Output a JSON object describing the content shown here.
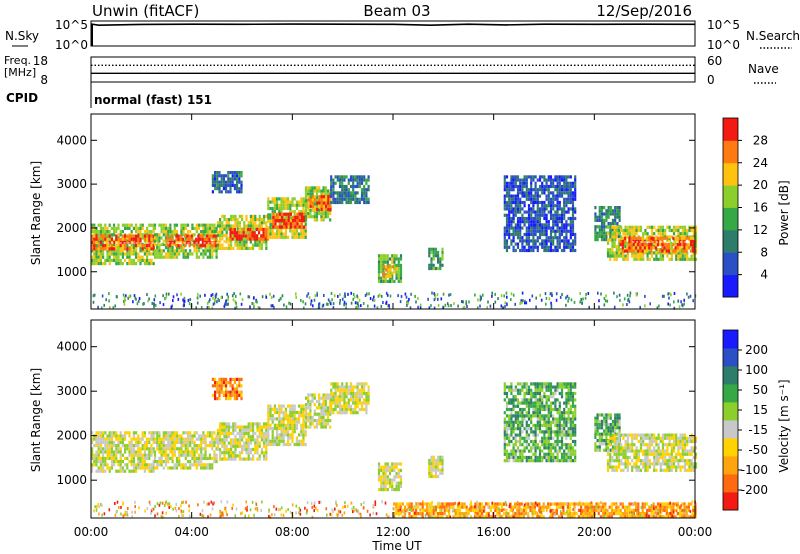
{
  "header": {
    "station": "Unwin (fitACF)",
    "beam": "Beam 03",
    "date": "12/Sep/2016"
  },
  "chart_data": [
    {
      "type": "line",
      "panel": "sky-noise",
      "ylabel_left": "N.Sky",
      "ylabel_right": "N.Search",
      "left_ticks": [
        "10^5",
        "10^0"
      ],
      "right_ticks": [
        "10^5",
        "10^0"
      ],
      "series": [
        {
          "name": "N.Sky",
          "style": "solid",
          "x_hours": [
            0,
            0.3,
            2,
            4,
            6,
            8,
            10,
            12,
            13.5,
            15,
            16.5,
            18,
            20,
            22,
            24
          ],
          "values": [
            100000,
            50000,
            80000,
            90000,
            85000,
            95000,
            90000,
            85000,
            50000,
            90000,
            60000,
            90000,
            85000,
            90000,
            85000
          ]
        }
      ]
    },
    {
      "type": "line",
      "panel": "frequency-nave",
      "ylabel_left": "Freq. [MHz]",
      "ylabel_right": "Nave",
      "left_ticks": [
        "18",
        "8"
      ],
      "right_ticks": [
        "60",
        "0"
      ],
      "ylim_left": [
        8,
        18
      ],
      "ylim_right": [
        0,
        60
      ],
      "series": [
        {
          "name": "Freq",
          "axis": "left",
          "style": "solid",
          "x_hours": [
            0,
            24
          ],
          "values": [
            11.5,
            11.5
          ]
        },
        {
          "name": "Nave",
          "axis": "right",
          "style": "dotted",
          "x_hours": [
            0,
            24
          ],
          "values": [
            40,
            40
          ]
        }
      ]
    },
    {
      "type": "table",
      "panel": "cpid",
      "label": "CPID",
      "program": "normal (fast) 151"
    },
    {
      "type": "heatmap",
      "panel": "power",
      "ylabel": "Slant Range [km]",
      "y_ticks": [
        "1000",
        "2000",
        "3000",
        "4000"
      ],
      "ylim": [
        150,
        4600
      ],
      "colorbar_label": "Power [dB]",
      "colorbar_ticks": [
        "4",
        "8",
        "12",
        "16",
        "20",
        "24",
        "28"
      ],
      "colorbar_range": [
        0,
        32
      ],
      "colors": [
        "#1a1aff",
        "#2b4fc4",
        "#2e7d6b",
        "#36a845",
        "#8ccf2c",
        "#ffc20e",
        "#ff7a10",
        "#f21a12"
      ],
      "regions": [
        {
          "t0": 0.0,
          "t1": 2.5,
          "r0": 1200,
          "r1": 2100,
          "level": 0.55
        },
        {
          "t0": 0.0,
          "t1": 2.5,
          "r0": 1550,
          "r1": 1850,
          "level": 0.85
        },
        {
          "t0": 2.5,
          "t1": 5.0,
          "r0": 1300,
          "r1": 2100,
          "level": 0.55
        },
        {
          "t0": 3.0,
          "t1": 5.0,
          "r0": 1600,
          "r1": 1850,
          "level": 0.9
        },
        {
          "t0": 5.0,
          "t1": 7.0,
          "r0": 1500,
          "r1": 2300,
          "level": 0.6
        },
        {
          "t0": 5.5,
          "t1": 7.0,
          "r0": 1750,
          "r1": 2000,
          "level": 0.9
        },
        {
          "t0": 7.0,
          "t1": 8.5,
          "r0": 1800,
          "r1": 2700,
          "level": 0.6
        },
        {
          "t0": 7.2,
          "t1": 8.5,
          "r0": 2000,
          "r1": 2350,
          "level": 0.92
        },
        {
          "t0": 8.5,
          "t1": 9.5,
          "r0": 2200,
          "r1": 2950,
          "level": 0.55
        },
        {
          "t0": 8.6,
          "t1": 9.5,
          "r0": 2450,
          "r1": 2750,
          "level": 0.85
        },
        {
          "t0": 9.5,
          "t1": 11.0,
          "r0": 2550,
          "r1": 3200,
          "level": 0.3
        },
        {
          "t0": 4.8,
          "t1": 6.0,
          "r0": 2800,
          "r1": 3300,
          "level": 0.25
        },
        {
          "t0": 11.4,
          "t1": 12.3,
          "r0": 800,
          "r1": 1400,
          "level": 0.5
        },
        {
          "t0": 11.6,
          "t1": 12.0,
          "r0": 900,
          "r1": 1150,
          "level": 0.75
        },
        {
          "t0": 13.4,
          "t1": 14.0,
          "r0": 1050,
          "r1": 1550,
          "level": 0.4
        },
        {
          "t0": 16.4,
          "t1": 19.2,
          "r0": 1450,
          "r1": 3200,
          "level": 0.2
        },
        {
          "t0": 20.0,
          "t1": 21.0,
          "r0": 1700,
          "r1": 2500,
          "level": 0.35
        },
        {
          "t0": 20.5,
          "t1": 24.0,
          "r0": 1250,
          "r1": 2050,
          "level": 0.6
        },
        {
          "t0": 21.0,
          "t1": 24.0,
          "r0": 1450,
          "r1": 1800,
          "level": 0.85
        }
      ]
    },
    {
      "type": "heatmap",
      "panel": "velocity",
      "ylabel": "Slant Range [km]",
      "y_ticks": [
        "1000",
        "2000",
        "3000",
        "4000"
      ],
      "ylim": [
        150,
        4600
      ],
      "colorbar_label": "Velocity [m s⁻¹]",
      "colorbar_ticks": [
        "-200",
        "-100",
        "-50",
        "-15",
        "15",
        "50",
        "100",
        "200"
      ],
      "colorbar_range": [
        -250,
        250
      ],
      "colors": [
        "#f21a12",
        "#ff6a10",
        "#ffa30e",
        "#ffd200",
        "#c8c8c8",
        "#8ccf2c",
        "#36a845",
        "#2e7d6b",
        "#2b4fc4",
        "#1a1aff"
      ],
      "regions": [
        {
          "t0": 0.0,
          "t1": 2.5,
          "r0": 1200,
          "r1": 2100,
          "level": 0.45
        },
        {
          "t0": 2.5,
          "t1": 5.0,
          "r0": 1300,
          "r1": 2100,
          "level": 0.45
        },
        {
          "t0": 5.0,
          "t1": 7.0,
          "r0": 1500,
          "r1": 2300,
          "level": 0.45
        },
        {
          "t0": 7.0,
          "t1": 8.5,
          "r0": 1800,
          "r1": 2700,
          "level": 0.45
        },
        {
          "t0": 8.5,
          "t1": 9.5,
          "r0": 2200,
          "r1": 2950,
          "level": 0.45
        },
        {
          "t0": 9.5,
          "t1": 11.0,
          "r0": 2550,
          "r1": 3200,
          "level": 0.45
        },
        {
          "t0": 4.8,
          "t1": 6.0,
          "r0": 2800,
          "r1": 3300,
          "level": 0.2
        },
        {
          "t0": 11.4,
          "t1": 12.3,
          "r0": 800,
          "r1": 1400,
          "level": 0.45
        },
        {
          "t0": 13.4,
          "t1": 14.0,
          "r0": 1050,
          "r1": 1550,
          "level": 0.45
        },
        {
          "t0": 16.4,
          "t1": 19.2,
          "r0": 1450,
          "r1": 3200,
          "level": 0.62
        },
        {
          "t0": 20.0,
          "t1": 21.0,
          "r0": 1700,
          "r1": 2500,
          "level": 0.62
        },
        {
          "t0": 20.5,
          "t1": 24.0,
          "r0": 1250,
          "r1": 2050,
          "level": 0.45
        },
        {
          "t0": 12.0,
          "t1": 24.0,
          "r0": 200,
          "r1": 500,
          "level": 0.25
        }
      ]
    }
  ],
  "x_axis": {
    "label": "Time UT",
    "ticks": [
      "00:00",
      "04:00",
      "08:00",
      "12:00",
      "16:00",
      "20:00",
      "00:00"
    ],
    "range_hours": [
      0,
      24
    ]
  }
}
